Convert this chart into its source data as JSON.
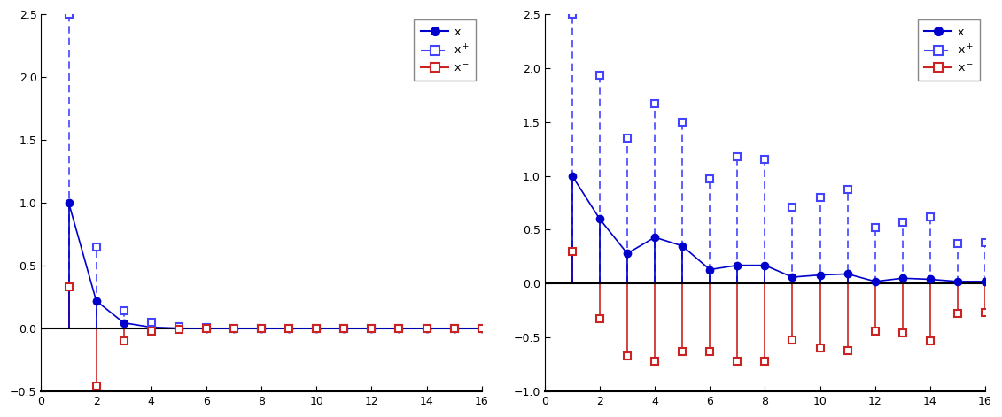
{
  "left": {
    "n": [
      1,
      2,
      3,
      4,
      5,
      6,
      7,
      8,
      9,
      10,
      11,
      12,
      13,
      14,
      15,
      16
    ],
    "x": [
      1.0,
      0.22,
      0.045,
      0.01,
      0.002,
      0.0005,
      0.0001,
      3e-05,
      7e-06,
      0.0,
      0.0,
      0.0,
      0.0,
      0.0,
      0.0,
      0.0
    ],
    "xp": [
      2.5,
      0.65,
      0.14,
      0.05,
      0.015,
      0.005,
      0.001,
      0.0003,
      7e-05,
      0.0,
      0.0,
      0.0,
      0.0,
      0.0,
      0.0,
      0.0
    ],
    "xm": [
      0.33,
      -0.46,
      -0.1,
      -0.02,
      -0.005,
      -0.001,
      0.0,
      0.0,
      0.0,
      0.0,
      0.0,
      0.0,
      0.0,
      0.0,
      0.0,
      0.0
    ],
    "ylim": [
      -0.5,
      2.5
    ],
    "yticks": [
      -0.5,
      0.0,
      0.5,
      1.0,
      1.5,
      2.0,
      2.5
    ]
  },
  "right": {
    "n": [
      1,
      2,
      3,
      4,
      5,
      6,
      7,
      8,
      9,
      10,
      11,
      12,
      13,
      14,
      15,
      16
    ],
    "x": [
      1.0,
      0.6,
      0.28,
      0.43,
      0.35,
      0.13,
      0.17,
      0.17,
      0.06,
      0.08,
      0.09,
      0.02,
      0.05,
      0.04,
      0.02,
      0.02
    ],
    "xp": [
      2.5,
      1.93,
      1.35,
      1.67,
      1.5,
      0.97,
      1.18,
      1.15,
      0.71,
      0.8,
      0.87,
      0.52,
      0.57,
      0.62,
      0.37,
      0.38
    ],
    "xm": [
      0.3,
      -0.33,
      -0.67,
      -0.72,
      -0.63,
      -0.63,
      -0.72,
      -0.72,
      -0.52,
      -0.6,
      -0.62,
      -0.44,
      -0.46,
      -0.53,
      -0.28,
      -0.27
    ],
    "ylim": [
      -1.0,
      2.5
    ],
    "yticks": [
      -1.0,
      -0.5,
      0.0,
      0.5,
      1.0,
      1.5,
      2.0,
      2.5
    ]
  },
  "color_x": "#0000cc",
  "color_xp": "#4444ff",
  "color_xm": "#cc2222",
  "xticks": [
    0,
    2,
    4,
    6,
    8,
    10,
    12,
    14,
    16
  ]
}
